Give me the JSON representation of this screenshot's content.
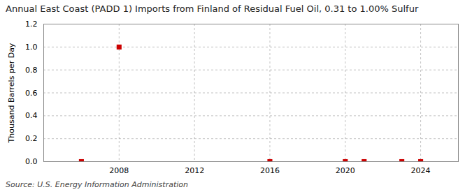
{
  "chart_data": {
    "type": "scatter",
    "title": "Annual East Coast (PADD 1) Imports from Finland of Residual Fuel Oil, 0.31 to 1.00% Sulfur",
    "ylabel": "Thousand Barrels per Day",
    "source": "Source: U.S. Energy Information Administration",
    "x": [
      2006,
      2008,
      2016,
      2020,
      2021,
      2023,
      2024
    ],
    "values": [
      0.0,
      1.0,
      0.0,
      0.0,
      0.0,
      0.0,
      0.0
    ],
    "color": "#cc0000",
    "marker": "square",
    "xlim": [
      2004,
      2026
    ],
    "ylim": [
      0.0,
      1.2
    ],
    "xticks": [
      2008,
      2012,
      2016,
      2020,
      2024
    ],
    "yticks": [
      {
        "value": 0.0,
        "label": "0.0"
      },
      {
        "value": 0.2,
        "label": "0.2"
      },
      {
        "value": 0.4,
        "label": "0.4"
      },
      {
        "value": 0.6,
        "label": "0.6"
      },
      {
        "value": 0.8,
        "label": "0.8"
      },
      {
        "value": 1.0,
        "label": "1.0"
      },
      {
        "value": 1.2,
        "label": "1.2"
      }
    ],
    "grid": true
  }
}
